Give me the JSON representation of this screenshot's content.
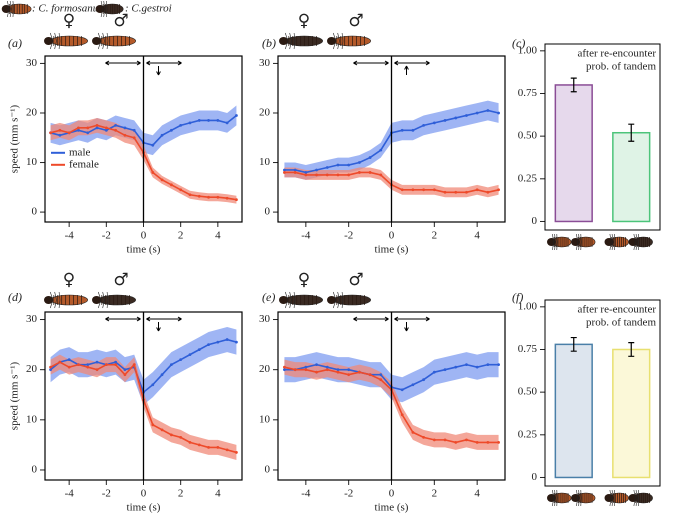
{
  "header": {
    "items": [
      ": C. formosanus",
      ": C.gestroi"
    ]
  },
  "chart_data": [
    {
      "type": "line",
      "panel_label": "(a)",
      "annotations": [
        "♀",
        "♂"
      ],
      "ylabel": "speed (mm s⁻¹)",
      "xlabel": "time (s)",
      "x": [
        -5,
        -4.5,
        -4,
        -3.5,
        -3,
        -2.5,
        -2,
        -1.5,
        -1,
        -0.5,
        0,
        0.5,
        1,
        1.5,
        2,
        2.5,
        3,
        3.5,
        4,
        4.5,
        5
      ],
      "series": [
        {
          "name": "male",
          "color": "#2f5fd8",
          "band_color": "#7f9cf0",
          "values": [
            16,
            15.5,
            16,
            16.5,
            16,
            17,
            16.5,
            17.5,
            17,
            16.5,
            14,
            13.5,
            15.5,
            16.5,
            17.5,
            18,
            18.5,
            18.5,
            18.5,
            18,
            19.5
          ],
          "errors": [
            2,
            2,
            2,
            2,
            2,
            2,
            2,
            2,
            2,
            2,
            2,
            2,
            2,
            2,
            2,
            2,
            2,
            2,
            2,
            2,
            2
          ]
        },
        {
          "name": "female",
          "color": "#ee4a2a",
          "band_color": "#f08a78",
          "values": [
            16,
            16.5,
            16,
            17,
            17,
            17.5,
            17,
            16.5,
            15.5,
            15,
            12,
            8,
            6.5,
            5.5,
            4.5,
            3.5,
            3.2,
            3,
            3,
            2.8,
            2.5
          ],
          "errors": [
            1.5,
            1.5,
            1.5,
            1.5,
            1.5,
            1.5,
            1.5,
            1.5,
            1.5,
            1.5,
            1.5,
            1,
            0.8,
            0.8,
            0.8,
            0.8,
            0.8,
            0.8,
            0.8,
            0.8,
            0.8
          ]
        }
      ],
      "xlim": [
        -5.3,
        5.3
      ],
      "xticks": [
        -4,
        -2,
        0,
        2,
        4
      ],
      "ylim": [
        -2,
        31.5
      ],
      "yticks": [
        0,
        10,
        20,
        30
      ],
      "vline": 0,
      "legend": "left"
    },
    {
      "type": "line",
      "panel_label": "(b)",
      "annotations": [
        "♀",
        "♂"
      ],
      "xlabel": "time (s)",
      "x": [
        -5,
        -4.5,
        -4,
        -3.5,
        -3,
        -2.5,
        -2,
        -1.5,
        -1,
        -0.5,
        0,
        0.5,
        1,
        1.5,
        2,
        2.5,
        3,
        3.5,
        4,
        4.5,
        5
      ],
      "series": [
        {
          "name": "male",
          "color": "#2f5fd8",
          "band_color": "#7f9cf0",
          "values": [
            8.5,
            8.5,
            8,
            8.5,
            9,
            9.5,
            9.5,
            10,
            11,
            12.5,
            16,
            16.5,
            16.5,
            17.5,
            18,
            18.5,
            19,
            19.5,
            20,
            20.5,
            20
          ],
          "errors": [
            1.5,
            1.5,
            1.5,
            1.5,
            1.5,
            1.5,
            1.5,
            1.5,
            1.5,
            1.5,
            2,
            2,
            2,
            2,
            2,
            2,
            2,
            2,
            2,
            2,
            2
          ]
        },
        {
          "name": "female",
          "color": "#ee4a2a",
          "band_color": "#f08a78",
          "values": [
            8,
            8,
            7.5,
            7.5,
            7.5,
            7.5,
            7.5,
            8,
            8,
            7.5,
            5.5,
            4.5,
            4.5,
            4.5,
            4.5,
            4,
            4,
            4,
            4.5,
            4,
            4.5
          ],
          "errors": [
            1,
            1,
            1,
            1,
            1,
            1,
            1,
            1,
            1,
            1,
            1,
            1,
            1,
            1,
            1,
            1,
            1,
            1,
            1,
            1,
            1
          ]
        }
      ],
      "xlim": [
        -5.3,
        5.3
      ],
      "xticks": [
        -4,
        -2,
        0,
        2,
        4
      ],
      "ylim": [
        -2,
        31.5
      ],
      "yticks": [
        0,
        10,
        20,
        30
      ],
      "vline": 0
    },
    {
      "type": "bar",
      "panel_label": "(c)",
      "title": [
        "after re-encounter",
        "prob. of tandem"
      ],
      "categories": [
        null,
        null
      ],
      "values": [
        0.8,
        0.52
      ],
      "errors": [
        0.04,
        0.05
      ],
      "colors": [
        "#e6d9ec",
        "#dff3e6"
      ],
      "edge_colors": [
        "#8a4d96",
        "#4cc47a"
      ],
      "ylim": [
        -0.05,
        1.04
      ],
      "yticks": [
        0,
        0.25,
        {
          "value": 0.5,
          "label": "0.50"
        },
        0.75,
        {
          "value": 1,
          "label": "1.00"
        }
      ]
    },
    {
      "type": "line",
      "panel_label": "(d)",
      "annotations": [
        "♀",
        "♂"
      ],
      "ylabel": "speed (mm s⁻¹)",
      "xlabel": "time (s)",
      "x": [
        -5,
        -4.5,
        -4,
        -3.5,
        -3,
        -2.5,
        -2,
        -1.5,
        -1,
        -0.5,
        0,
        0.5,
        1,
        1.5,
        2,
        2.5,
        3,
        3.5,
        4,
        4.5,
        5
      ],
      "series": [
        {
          "name": "male",
          "color": "#2f5fd8",
          "band_color": "#7f9cf0",
          "values": [
            20,
            21.5,
            22,
            21,
            21,
            21.5,
            21,
            21.5,
            20,
            20.5,
            15.5,
            17,
            19,
            21,
            22,
            23,
            24,
            25,
            25.5,
            26,
            25.5
          ],
          "errors": [
            2.5,
            2.5,
            2.5,
            2.5,
            2.5,
            2.5,
            2.5,
            2.5,
            2.5,
            2.5,
            2.5,
            2.5,
            2.5,
            2.5,
            2.5,
            2.5,
            2.5,
            2.5,
            2.5,
            2.5,
            2.5
          ]
        },
        {
          "name": "female",
          "color": "#ee4a2a",
          "band_color": "#f08a78",
          "values": [
            20.5,
            21.5,
            20.5,
            21,
            20.5,
            20,
            21,
            21,
            19,
            21,
            14,
            9,
            8,
            7,
            6.5,
            5.5,
            5,
            4.5,
            4.5,
            4,
            3.5
          ],
          "errors": [
            1.5,
            1.5,
            1.5,
            1.5,
            1.5,
            1.5,
            1.5,
            1.5,
            1.5,
            1.5,
            1.5,
            1.5,
            1.5,
            1.5,
            1.5,
            1.5,
            1.5,
            1.5,
            1.5,
            1.5,
            1.5
          ]
        }
      ],
      "xlim": [
        -5.3,
        5.3
      ],
      "xticks": [
        -4,
        -2,
        0,
        2,
        4
      ],
      "ylim": [
        -2,
        31.5
      ],
      "yticks": [
        0,
        10,
        20,
        30
      ],
      "vline": 0
    },
    {
      "type": "line",
      "panel_label": "(e)",
      "annotations": [
        "♀",
        "♂"
      ],
      "xlabel": "time (s)",
      "x": [
        -5,
        -4.5,
        -4,
        -3.5,
        -3,
        -2.5,
        -2,
        -1.5,
        -1,
        -0.5,
        0,
        0.5,
        1,
        1.5,
        2,
        2.5,
        3,
        3.5,
        4,
        4.5,
        5
      ],
      "series": [
        {
          "name": "male",
          "color": "#2f5fd8",
          "band_color": "#7f9cf0",
          "values": [
            20,
            20,
            20.5,
            21,
            20.5,
            20,
            20,
            19.5,
            19,
            19,
            16.5,
            16,
            17,
            18,
            19.5,
            20,
            20.5,
            21,
            20.5,
            21,
            21
          ],
          "errors": [
            2.5,
            2.5,
            2.5,
            2.5,
            2.5,
            2.5,
            2.5,
            2.5,
            2.5,
            2.5,
            2.5,
            2.5,
            2.5,
            2.5,
            2.5,
            2.5,
            2.5,
            2.5,
            2.5,
            2.5,
            2.5
          ]
        },
        {
          "name": "female",
          "color": "#ee4a2a",
          "band_color": "#f08a78",
          "values": [
            20.5,
            20,
            20,
            19.5,
            20,
            19.5,
            19,
            19.5,
            19,
            18,
            16,
            11,
            7.5,
            6.5,
            6,
            6,
            5.5,
            6,
            5.5,
            5.5,
            5.5
          ],
          "errors": [
            1.5,
            1.5,
            1.5,
            1.5,
            1.5,
            1.5,
            1.5,
            1.5,
            1.5,
            1.5,
            1.5,
            1.5,
            1.5,
            1.5,
            1.5,
            1.5,
            1.5,
            1.5,
            1.5,
            1.5,
            1.5
          ]
        }
      ],
      "xlim": [
        -5.3,
        5.3
      ],
      "xticks": [
        -4,
        -2,
        0,
        2,
        4
      ],
      "ylim": [
        -2,
        31.5
      ],
      "yticks": [
        0,
        10,
        20,
        30
      ],
      "vline": 0
    },
    {
      "type": "bar",
      "panel_label": "(f)",
      "title": [
        "after re-encounter",
        "prob. of tandem"
      ],
      "categories": [
        null,
        null
      ],
      "values": [
        0.78,
        0.75
      ],
      "errors": [
        0.04,
        0.04
      ],
      "colors": [
        "#dde5ee",
        "#fbf8d8"
      ],
      "edge_colors": [
        "#4a7fa8",
        "#e8e070"
      ],
      "ylim": [
        -0.05,
        1.04
      ],
      "yticks": [
        0,
        0.25,
        {
          "value": 0.5,
          "label": "0.50"
        },
        0.75,
        {
          "value": 1,
          "label": "1.00"
        }
      ]
    }
  ]
}
